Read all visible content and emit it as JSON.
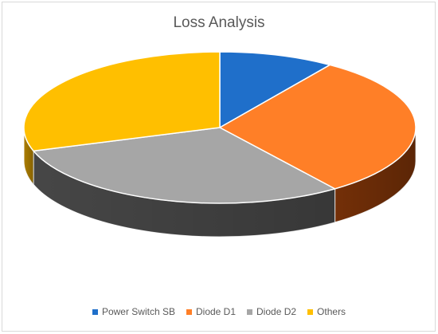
{
  "chart_data": {
    "type": "pie",
    "title": "Loss Analysis",
    "labels": [
      "Power Switch SB",
      "Diode D1",
      "Diode D2",
      "Others"
    ],
    "values": [
      9.5,
      30.5,
      30.0,
      30.0
    ],
    "colors": [
      "#1f6fca",
      "#ff7f27",
      "#a6a6a6",
      "#ffbf00"
    ],
    "side_colors": [
      "#0c3f78",
      "#7a3208",
      "#4a4a4a",
      "#b58400"
    ],
    "style": "3d",
    "legend": "bottom"
  }
}
